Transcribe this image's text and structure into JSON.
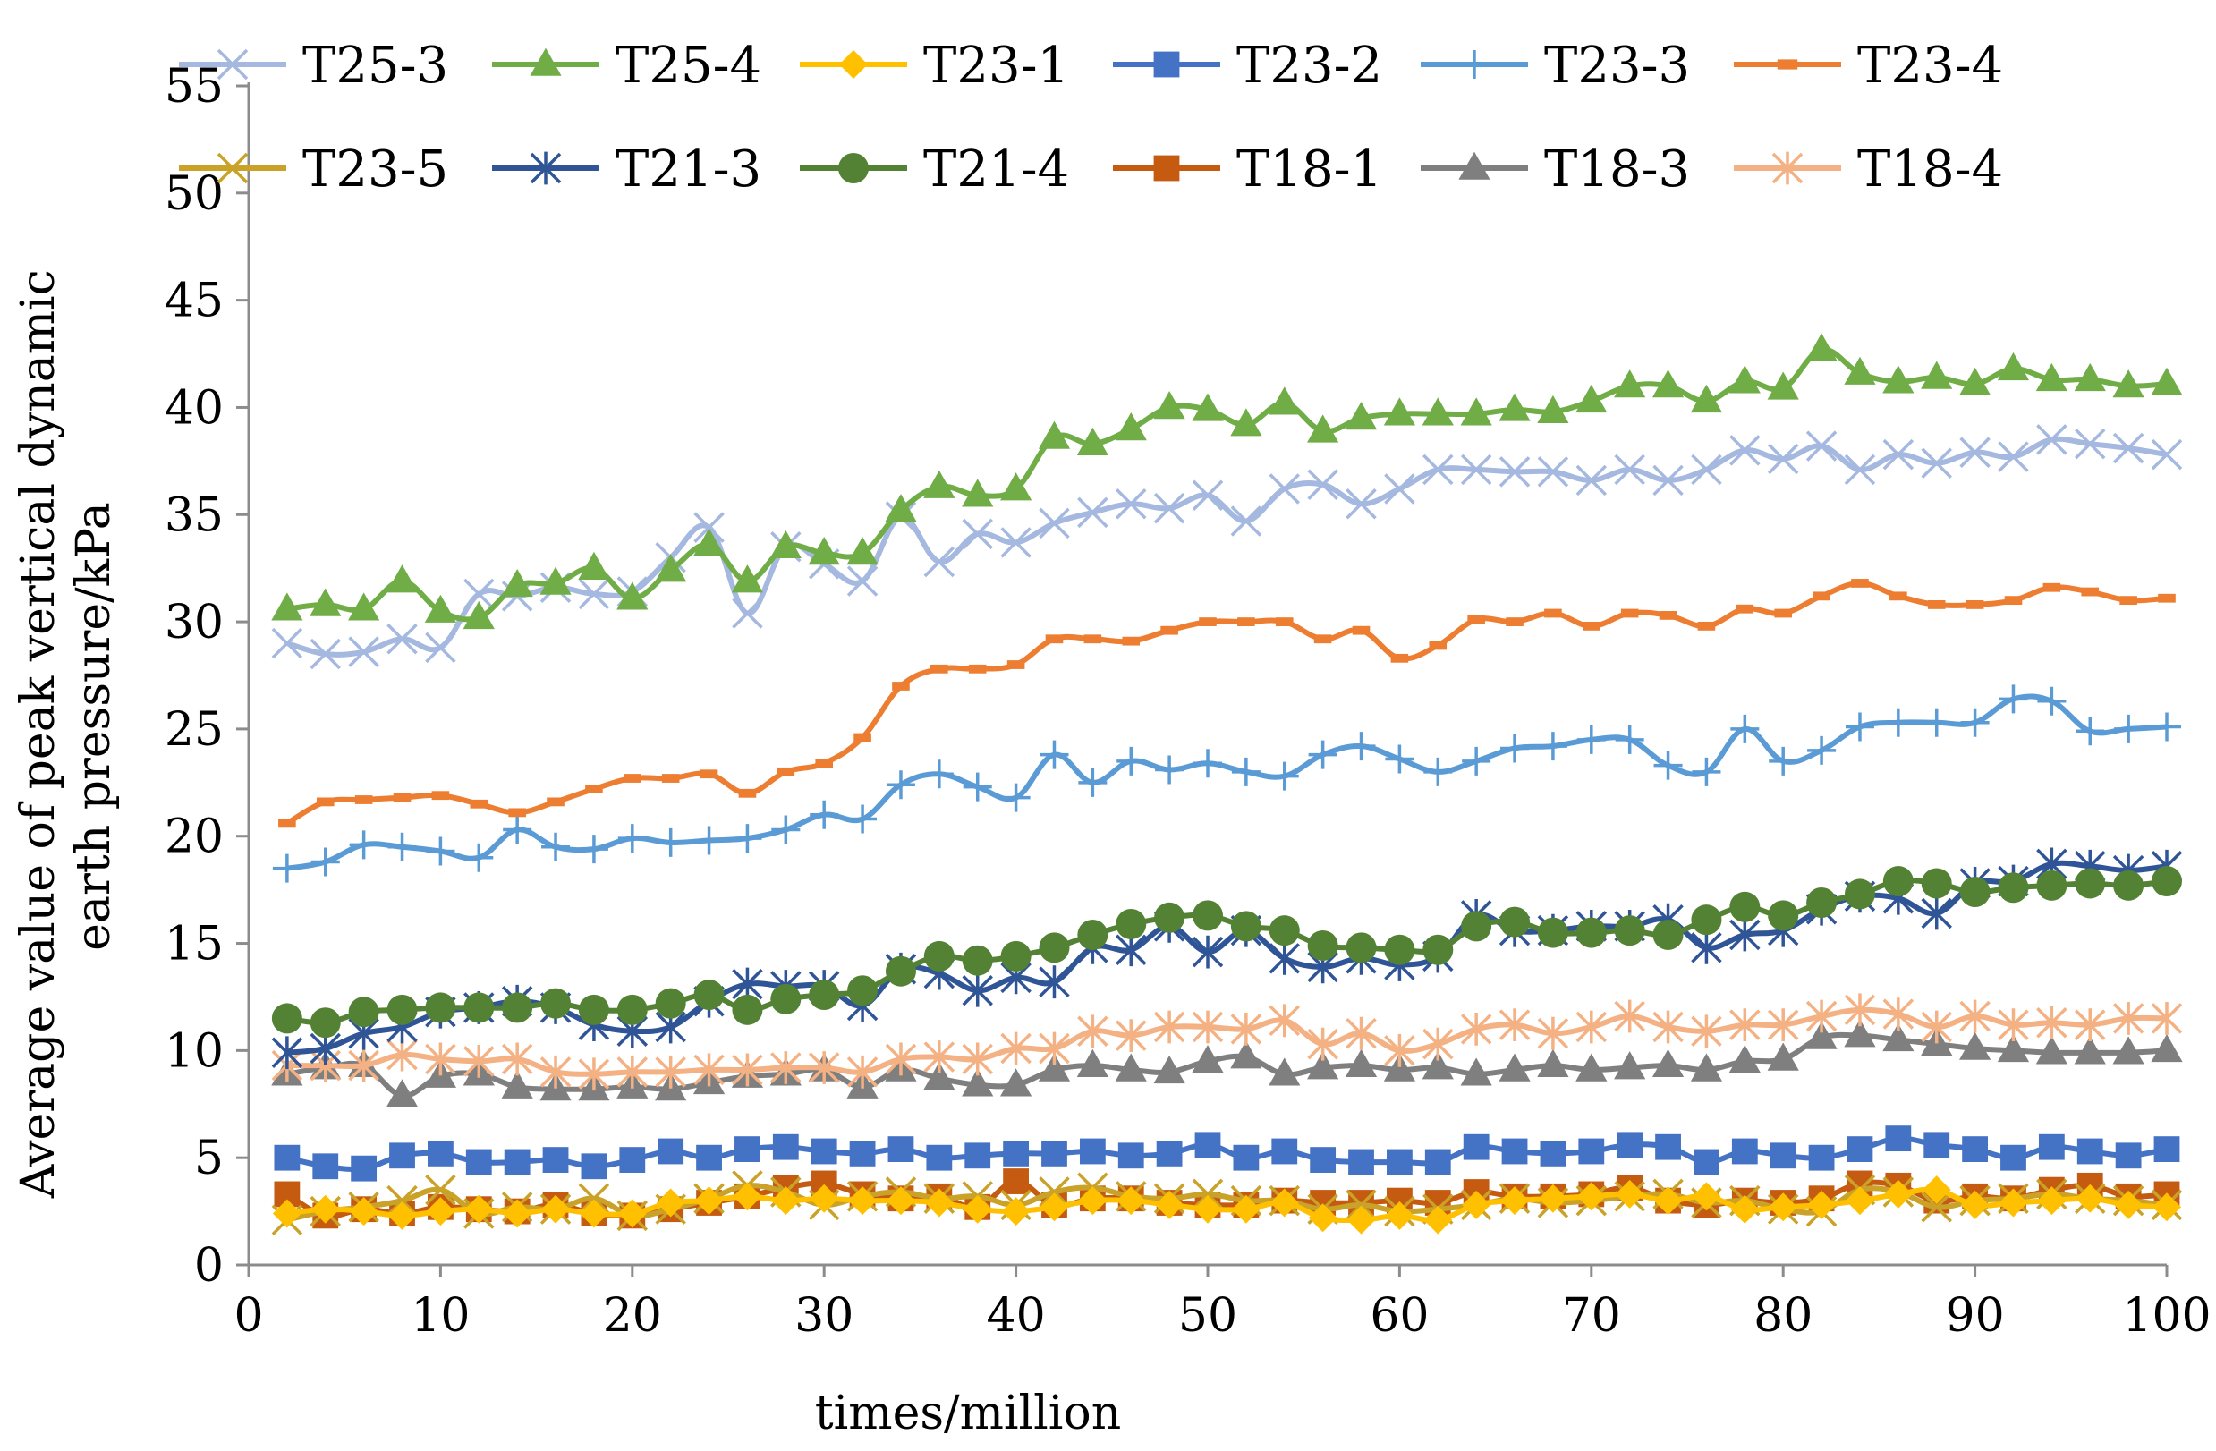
{
  "chart_data": {
    "type": "line",
    "title": "",
    "xlabel": "times/million",
    "ylabel_lines": [
      "Average value of peak vertical dynamic",
      "earth pressure/kPa"
    ],
    "xlim": [
      0,
      100
    ],
    "ylim": [
      0,
      55
    ],
    "x_ticks": [
      0,
      10,
      20,
      30,
      40,
      50,
      60,
      70,
      80,
      90,
      100
    ],
    "y_ticks": [
      0,
      5,
      10,
      15,
      20,
      25,
      30,
      35,
      40,
      45,
      50,
      55
    ],
    "grid": false,
    "legend_position": "top",
    "x": [
      2,
      4,
      6,
      8,
      10,
      12,
      14,
      16,
      18,
      20,
      22,
      24,
      26,
      28,
      30,
      32,
      34,
      36,
      38,
      40,
      42,
      44,
      46,
      48,
      50,
      52,
      54,
      56,
      58,
      60,
      62,
      64,
      66,
      68,
      70,
      72,
      74,
      76,
      78,
      80,
      82,
      84,
      86,
      88,
      90,
      92,
      94,
      96,
      98,
      100
    ],
    "series": [
      {
        "name": "T25-3",
        "color": "#A5B8DF",
        "marker": "x",
        "values": [
          29.0,
          28.5,
          28.6,
          29.2,
          28.8,
          31.3,
          31.2,
          31.6,
          31.3,
          31.4,
          33.0,
          34.4,
          30.4,
          33.5,
          32.7,
          31.9,
          34.9,
          32.8,
          34.1,
          33.7,
          34.6,
          35.1,
          35.5,
          35.3,
          35.9,
          34.7,
          36.2,
          36.4,
          35.5,
          36.2,
          37.1,
          37.1,
          37.0,
          37.0,
          36.6,
          37.1,
          36.6,
          37.1,
          38.0,
          37.6,
          38.2,
          37.1,
          37.8,
          37.4,
          37.9,
          37.7,
          38.5,
          38.3,
          38.1,
          37.8
        ]
      },
      {
        "name": "T25-4",
        "color": "#70AD47",
        "marker": "triangle",
        "values": [
          30.6,
          30.8,
          30.6,
          31.9,
          30.5,
          30.2,
          31.7,
          31.8,
          32.5,
          31.1,
          32.4,
          33.6,
          31.9,
          33.5,
          33.2,
          33.2,
          35.2,
          36.3,
          35.9,
          36.2,
          38.6,
          38.3,
          39.0,
          40.0,
          39.9,
          39.2,
          40.2,
          38.9,
          39.5,
          39.7,
          39.7,
          39.7,
          39.9,
          39.8,
          40.3,
          41.0,
          41.0,
          40.3,
          41.2,
          40.9,
          42.7,
          41.6,
          41.2,
          41.4,
          41.1,
          41.8,
          41.3,
          41.3,
          41.0,
          41.1
        ]
      },
      {
        "name": "T23-1",
        "color": "#FFC000",
        "marker": "diamond",
        "values": [
          2.4,
          2.6,
          2.5,
          2.3,
          2.5,
          2.6,
          2.4,
          2.6,
          2.4,
          2.4,
          2.9,
          3.0,
          3.2,
          3.0,
          3.1,
          3.0,
          3.0,
          2.9,
          2.6,
          2.5,
          2.7,
          3.0,
          3.0,
          2.8,
          2.6,
          2.6,
          2.9,
          2.2,
          2.1,
          2.3,
          2.1,
          2.8,
          3.0,
          3.1,
          3.2,
          3.3,
          3.0,
          3.2,
          2.6,
          2.7,
          2.8,
          3.0,
          3.3,
          3.5,
          2.8,
          2.9,
          3.0,
          3.1,
          2.8,
          2.7
        ]
      },
      {
        "name": "T23-2",
        "color": "#4472C4",
        "marker": "square",
        "values": [
          5.0,
          4.6,
          4.5,
          5.1,
          5.2,
          4.8,
          4.8,
          4.9,
          4.6,
          4.9,
          5.3,
          5.0,
          5.4,
          5.5,
          5.3,
          5.2,
          5.4,
          5.0,
          5.1,
          5.2,
          5.2,
          5.3,
          5.1,
          5.2,
          5.6,
          5.0,
          5.3,
          4.9,
          4.8,
          4.8,
          4.8,
          5.5,
          5.3,
          5.2,
          5.3,
          5.6,
          5.5,
          4.8,
          5.3,
          5.1,
          5.0,
          5.4,
          5.9,
          5.6,
          5.4,
          5.0,
          5.5,
          5.3,
          5.1,
          5.4
        ]
      },
      {
        "name": "T23-3",
        "color": "#5B9BD5",
        "marker": "plus",
        "values": [
          18.5,
          18.8,
          19.6,
          19.5,
          19.3,
          19.0,
          20.3,
          19.5,
          19.4,
          19.9,
          19.7,
          19.8,
          19.9,
          20.3,
          21.0,
          20.8,
          22.4,
          22.9,
          22.3,
          21.8,
          23.8,
          22.5,
          23.5,
          23.1,
          23.4,
          23.0,
          22.8,
          23.8,
          24.2,
          23.6,
          23.0,
          23.5,
          24.1,
          24.2,
          24.5,
          24.5,
          23.3,
          23.0,
          25.0,
          23.5,
          24.0,
          25.1,
          25.3,
          25.3,
          25.3,
          26.4,
          26.3,
          24.9,
          25.0,
          25.1
        ]
      },
      {
        "name": "T23-4",
        "color": "#ED7D31",
        "marker": "dash",
        "values": [
          20.6,
          21.6,
          21.7,
          21.8,
          21.9,
          21.5,
          21.1,
          21.6,
          22.2,
          22.7,
          22.7,
          22.9,
          22.0,
          23.0,
          23.4,
          24.6,
          27.0,
          27.8,
          27.8,
          28.0,
          29.2,
          29.2,
          29.1,
          29.6,
          30.0,
          30.0,
          30.0,
          29.2,
          29.6,
          28.3,
          28.9,
          30.1,
          30.0,
          30.4,
          29.8,
          30.4,
          30.3,
          29.8,
          30.6,
          30.4,
          31.2,
          31.8,
          31.2,
          30.8,
          30.8,
          31.0,
          31.6,
          31.4,
          31.0,
          31.1
        ]
      },
      {
        "name": "T23-5",
        "color": "#C9A227",
        "marker": "x",
        "values": [
          2.1,
          2.5,
          2.7,
          3.0,
          3.5,
          2.4,
          2.7,
          2.6,
          3.1,
          2.3,
          2.6,
          3.1,
          3.7,
          3.4,
          2.8,
          3.2,
          3.4,
          3.1,
          3.2,
          2.8,
          3.4,
          3.6,
          3.2,
          3.1,
          3.3,
          3.0,
          3.0,
          2.6,
          2.8,
          2.5,
          2.6,
          2.8,
          3.1,
          2.9,
          3.0,
          3.2,
          3.3,
          2.9,
          3.0,
          2.6,
          2.5,
          3.5,
          3.4,
          2.7,
          3.0,
          3.1,
          3.3,
          3.1,
          3.0,
          2.8
        ]
      },
      {
        "name": "T21-3",
        "color": "#2F5597",
        "marker": "asterisk",
        "values": [
          9.9,
          10.1,
          10.8,
          11.1,
          11.8,
          12.0,
          12.3,
          12.0,
          11.2,
          10.9,
          11.1,
          12.3,
          13.1,
          13.0,
          13.0,
          12.1,
          13.8,
          13.6,
          12.8,
          13.4,
          13.2,
          14.8,
          14.7,
          15.8,
          14.6,
          15.6,
          14.3,
          13.9,
          14.3,
          14.0,
          14.4,
          16.3,
          15.6,
          15.6,
          15.8,
          15.8,
          16.1,
          14.8,
          15.4,
          15.6,
          16.6,
          17.2,
          17.1,
          16.4,
          17.8,
          17.9,
          18.7,
          18.6,
          18.4,
          18.6
        ]
      },
      {
        "name": "T21-4",
        "color": "#548235",
        "marker": "circle",
        "values": [
          11.5,
          11.3,
          11.8,
          11.9,
          12.0,
          12.0,
          12.0,
          12.2,
          11.9,
          11.9,
          12.2,
          12.6,
          11.9,
          12.4,
          12.6,
          12.8,
          13.7,
          14.4,
          14.2,
          14.4,
          14.8,
          15.4,
          15.9,
          16.2,
          16.3,
          15.8,
          15.6,
          14.9,
          14.8,
          14.7,
          14.7,
          15.8,
          16.0,
          15.5,
          15.5,
          15.6,
          15.4,
          16.1,
          16.7,
          16.3,
          16.9,
          17.3,
          17.9,
          17.8,
          17.4,
          17.6,
          17.7,
          17.8,
          17.7,
          17.9
        ]
      },
      {
        "name": "T18-1",
        "color": "#C55A11",
        "marker": "square",
        "values": [
          3.3,
          2.3,
          2.6,
          2.4,
          2.7,
          2.6,
          2.5,
          2.8,
          2.4,
          2.3,
          2.6,
          2.9,
          3.2,
          3.6,
          3.8,
          3.3,
          3.1,
          3.2,
          2.7,
          3.9,
          2.8,
          3.1,
          3.1,
          2.9,
          2.8,
          2.8,
          3.0,
          2.9,
          2.9,
          3.0,
          2.9,
          3.4,
          3.2,
          3.2,
          3.3,
          3.6,
          3.0,
          2.8,
          3.0,
          2.9,
          3.1,
          3.8,
          3.7,
          3.0,
          3.2,
          3.1,
          3.5,
          3.7,
          3.2,
          3.3
        ]
      },
      {
        "name": "T18-3",
        "color": "#7F7F7F",
        "marker": "triangle",
        "values": [
          8.9,
          9.2,
          9.3,
          7.9,
          8.8,
          8.9,
          8.3,
          8.2,
          8.2,
          8.3,
          8.2,
          8.5,
          8.8,
          8.9,
          9.1,
          8.3,
          9.1,
          8.7,
          8.4,
          8.4,
          9.1,
          9.3,
          9.1,
          9.0,
          9.5,
          9.7,
          8.9,
          9.2,
          9.3,
          9.1,
          9.2,
          8.9,
          9.1,
          9.3,
          9.1,
          9.2,
          9.3,
          9.1,
          9.5,
          9.6,
          10.6,
          10.7,
          10.5,
          10.3,
          10.1,
          10.0,
          9.9,
          9.9,
          9.9,
          10.0
        ]
      },
      {
        "name": "T18-4",
        "color": "#F4B183",
        "marker": "asterisk",
        "values": [
          9.3,
          9.3,
          9.3,
          9.8,
          9.6,
          9.5,
          9.6,
          9.0,
          8.9,
          9.0,
          9.0,
          9.1,
          9.1,
          9.2,
          9.2,
          9.0,
          9.6,
          9.7,
          9.6,
          10.1,
          10.1,
          10.9,
          10.7,
          11.1,
          11.1,
          11.0,
          11.4,
          10.3,
          10.8,
          10.0,
          10.3,
          11.0,
          11.2,
          10.8,
          11.1,
          11.6,
          11.1,
          10.9,
          11.2,
          11.2,
          11.6,
          11.9,
          11.7,
          11.1,
          11.6,
          11.2,
          11.3,
          11.2,
          11.5,
          11.5
        ]
      }
    ]
  }
}
